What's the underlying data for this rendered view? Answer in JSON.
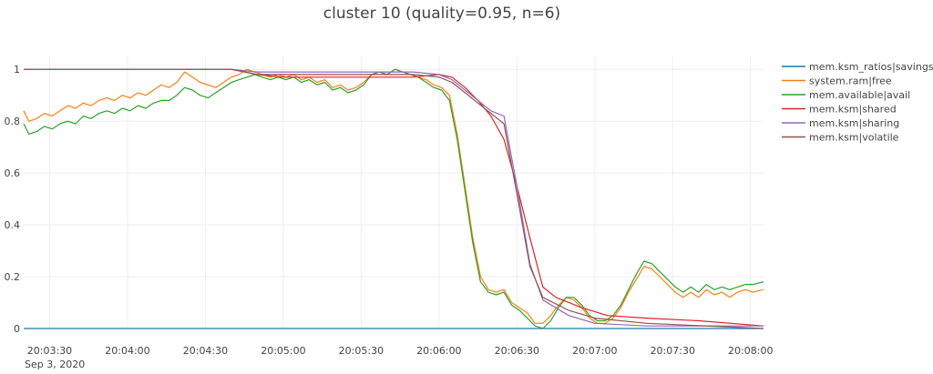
{
  "chart_data": {
    "type": "line",
    "title": "cluster 10 (quality=0.95, n=6)",
    "x_axis": {
      "ticks": [
        "20:03:30",
        "20:04:00",
        "20:04:30",
        "20:05:00",
        "20:05:30",
        "20:06:00",
        "20:06:30",
        "20:07:00",
        "20:07:30",
        "20:08:00"
      ],
      "date_label": "Sep 3, 2020",
      "range_seconds_from_label": [
        0,
        0
      ]
    },
    "y_axis": {
      "ticks": [
        "0",
        "0.2",
        "0.4",
        "0.6",
        "0.8",
        "1"
      ],
      "ylim": [
        0,
        1.05
      ]
    },
    "x_range": [
      "20:03:20",
      "20:08:05"
    ],
    "grid": true,
    "legend_position": "right",
    "series": [
      {
        "name": "mem.ksm_ratios|savings",
        "color": "#1f77b4",
        "points": [
          [
            "20:03:20",
            0.0
          ],
          [
            "20:08:05",
            0.0
          ]
        ]
      },
      {
        "name": "system.ram|free",
        "color": "#ff7f0e",
        "points": [
          [
            "20:03:20",
            0.84
          ],
          [
            "20:03:22",
            0.8
          ],
          [
            "20:03:25",
            0.81
          ],
          [
            "20:03:28",
            0.83
          ],
          [
            "20:03:31",
            0.82
          ],
          [
            "20:03:34",
            0.84
          ],
          [
            "20:03:37",
            0.86
          ],
          [
            "20:03:40",
            0.85
          ],
          [
            "20:03:43",
            0.87
          ],
          [
            "20:03:46",
            0.86
          ],
          [
            "20:03:49",
            0.88
          ],
          [
            "20:03:52",
            0.89
          ],
          [
            "20:03:55",
            0.88
          ],
          [
            "20:03:58",
            0.9
          ],
          [
            "20:04:01",
            0.89
          ],
          [
            "20:04:04",
            0.91
          ],
          [
            "20:04:07",
            0.9
          ],
          [
            "20:04:10",
            0.92
          ],
          [
            "20:04:13",
            0.94
          ],
          [
            "20:04:16",
            0.93
          ],
          [
            "20:04:19",
            0.95
          ],
          [
            "20:04:22",
            0.99
          ],
          [
            "20:04:25",
            0.97
          ],
          [
            "20:04:28",
            0.95
          ],
          [
            "20:04:31",
            0.94
          ],
          [
            "20:04:34",
            0.93
          ],
          [
            "20:04:37",
            0.95
          ],
          [
            "20:04:40",
            0.97
          ],
          [
            "20:04:43",
            0.98
          ],
          [
            "20:04:46",
            1.0
          ],
          [
            "20:04:49",
            0.99
          ],
          [
            "20:04:52",
            0.98
          ],
          [
            "20:04:55",
            0.97
          ],
          [
            "20:04:58",
            0.98
          ],
          [
            "20:05:01",
            0.97
          ],
          [
            "20:05:04",
            0.98
          ],
          [
            "20:05:07",
            0.96
          ],
          [
            "20:05:10",
            0.97
          ],
          [
            "20:05:13",
            0.95
          ],
          [
            "20:05:16",
            0.96
          ],
          [
            "20:05:19",
            0.93
          ],
          [
            "20:05:22",
            0.94
          ],
          [
            "20:05:25",
            0.92
          ],
          [
            "20:05:28",
            0.93
          ],
          [
            "20:05:31",
            0.95
          ],
          [
            "20:05:34",
            0.98
          ],
          [
            "20:05:37",
            0.99
          ],
          [
            "20:05:40",
            0.98
          ],
          [
            "20:05:43",
            1.0
          ],
          [
            "20:05:46",
            0.99
          ],
          [
            "20:05:49",
            0.98
          ],
          [
            "20:05:52",
            0.97
          ],
          [
            "20:05:55",
            0.96
          ],
          [
            "20:05:58",
            0.94
          ],
          [
            "20:06:01",
            0.93
          ],
          [
            "20:06:04",
            0.9
          ],
          [
            "20:06:07",
            0.75
          ],
          [
            "20:06:10",
            0.55
          ],
          [
            "20:06:13",
            0.35
          ],
          [
            "20:06:16",
            0.2
          ],
          [
            "20:06:19",
            0.15
          ],
          [
            "20:06:22",
            0.14
          ],
          [
            "20:06:25",
            0.15
          ],
          [
            "20:06:28",
            0.1
          ],
          [
            "20:06:31",
            0.08
          ],
          [
            "20:06:34",
            0.06
          ],
          [
            "20:06:37",
            0.02
          ],
          [
            "20:06:40",
            0.02
          ],
          [
            "20:06:43",
            0.05
          ],
          [
            "20:06:46",
            0.09
          ],
          [
            "20:06:49",
            0.12
          ],
          [
            "20:06:52",
            0.11
          ],
          [
            "20:06:55",
            0.08
          ],
          [
            "20:06:58",
            0.04
          ],
          [
            "20:07:01",
            0.02
          ],
          [
            "20:07:04",
            0.02
          ],
          [
            "20:07:07",
            0.04
          ],
          [
            "20:07:10",
            0.08
          ],
          [
            "20:07:13",
            0.14
          ],
          [
            "20:07:16",
            0.19
          ],
          [
            "20:07:19",
            0.24
          ],
          [
            "20:07:22",
            0.23
          ],
          [
            "20:07:25",
            0.2
          ],
          [
            "20:07:28",
            0.17
          ],
          [
            "20:07:31",
            0.14
          ],
          [
            "20:07:34",
            0.12
          ],
          [
            "20:07:37",
            0.14
          ],
          [
            "20:07:40",
            0.12
          ],
          [
            "20:07:43",
            0.15
          ],
          [
            "20:07:46",
            0.13
          ],
          [
            "20:07:49",
            0.14
          ],
          [
            "20:07:52",
            0.12
          ],
          [
            "20:07:55",
            0.14
          ],
          [
            "20:07:58",
            0.15
          ],
          [
            "20:08:01",
            0.14
          ],
          [
            "20:08:05",
            0.15
          ]
        ]
      },
      {
        "name": "mem.available|avail",
        "color": "#2ca02c",
        "points": [
          [
            "20:03:20",
            0.79
          ],
          [
            "20:03:22",
            0.75
          ],
          [
            "20:03:25",
            0.76
          ],
          [
            "20:03:28",
            0.78
          ],
          [
            "20:03:31",
            0.77
          ],
          [
            "20:03:34",
            0.79
          ],
          [
            "20:03:37",
            0.8
          ],
          [
            "20:03:40",
            0.79
          ],
          [
            "20:03:43",
            0.82
          ],
          [
            "20:03:46",
            0.81
          ],
          [
            "20:03:49",
            0.83
          ],
          [
            "20:03:52",
            0.84
          ],
          [
            "20:03:55",
            0.83
          ],
          [
            "20:03:58",
            0.85
          ],
          [
            "20:04:01",
            0.84
          ],
          [
            "20:04:04",
            0.86
          ],
          [
            "20:04:07",
            0.85
          ],
          [
            "20:04:10",
            0.87
          ],
          [
            "20:04:13",
            0.88
          ],
          [
            "20:04:16",
            0.88
          ],
          [
            "20:04:19",
            0.9
          ],
          [
            "20:04:22",
            0.93
          ],
          [
            "20:04:25",
            0.92
          ],
          [
            "20:04:28",
            0.9
          ],
          [
            "20:04:31",
            0.89
          ],
          [
            "20:04:34",
            0.91
          ],
          [
            "20:04:37",
            0.93
          ],
          [
            "20:04:40",
            0.95
          ],
          [
            "20:04:43",
            0.96
          ],
          [
            "20:04:46",
            0.97
          ],
          [
            "20:04:49",
            0.98
          ],
          [
            "20:04:52",
            0.97
          ],
          [
            "20:04:55",
            0.96
          ],
          [
            "20:04:58",
            0.97
          ],
          [
            "20:05:01",
            0.96
          ],
          [
            "20:05:04",
            0.97
          ],
          [
            "20:05:07",
            0.95
          ],
          [
            "20:05:10",
            0.96
          ],
          [
            "20:05:13",
            0.94
          ],
          [
            "20:05:16",
            0.95
          ],
          [
            "20:05:19",
            0.92
          ],
          [
            "20:05:22",
            0.93
          ],
          [
            "20:05:25",
            0.91
          ],
          [
            "20:05:28",
            0.92
          ],
          [
            "20:05:31",
            0.94
          ],
          [
            "20:05:34",
            0.98
          ],
          [
            "20:05:37",
            0.99
          ],
          [
            "20:05:40",
            0.98
          ],
          [
            "20:05:43",
            1.0
          ],
          [
            "20:05:46",
            0.99
          ],
          [
            "20:05:49",
            0.98
          ],
          [
            "20:05:52",
            0.97
          ],
          [
            "20:05:55",
            0.95
          ],
          [
            "20:05:58",
            0.93
          ],
          [
            "20:06:01",
            0.92
          ],
          [
            "20:06:04",
            0.88
          ],
          [
            "20:06:07",
            0.73
          ],
          [
            "20:06:10",
            0.53
          ],
          [
            "20:06:13",
            0.33
          ],
          [
            "20:06:16",
            0.18
          ],
          [
            "20:06:19",
            0.14
          ],
          [
            "20:06:22",
            0.13
          ],
          [
            "20:06:25",
            0.14
          ],
          [
            "20:06:28",
            0.09
          ],
          [
            "20:06:31",
            0.07
          ],
          [
            "20:06:34",
            0.04
          ],
          [
            "20:06:37",
            0.01
          ],
          [
            "20:06:40",
            0.0
          ],
          [
            "20:06:43",
            0.03
          ],
          [
            "20:06:46",
            0.08
          ],
          [
            "20:06:49",
            0.12
          ],
          [
            "20:06:52",
            0.12
          ],
          [
            "20:06:55",
            0.09
          ],
          [
            "20:06:58",
            0.05
          ],
          [
            "20:07:01",
            0.03
          ],
          [
            "20:07:04",
            0.03
          ],
          [
            "20:07:07",
            0.05
          ],
          [
            "20:07:10",
            0.09
          ],
          [
            "20:07:13",
            0.15
          ],
          [
            "20:07:16",
            0.21
          ],
          [
            "20:07:19",
            0.26
          ],
          [
            "20:07:22",
            0.25
          ],
          [
            "20:07:25",
            0.22
          ],
          [
            "20:07:28",
            0.19
          ],
          [
            "20:07:31",
            0.16
          ],
          [
            "20:07:34",
            0.14
          ],
          [
            "20:07:37",
            0.16
          ],
          [
            "20:07:40",
            0.14
          ],
          [
            "20:07:43",
            0.17
          ],
          [
            "20:07:46",
            0.15
          ],
          [
            "20:07:49",
            0.16
          ],
          [
            "20:07:52",
            0.15
          ],
          [
            "20:07:55",
            0.16
          ],
          [
            "20:07:58",
            0.17
          ],
          [
            "20:08:01",
            0.17
          ],
          [
            "20:08:05",
            0.18
          ]
        ]
      },
      {
        "name": "mem.ksm|shared",
        "color": "#d62728",
        "points": [
          [
            "20:03:20",
            1.0
          ],
          [
            "20:04:40",
            1.0
          ],
          [
            "20:04:50",
            0.98
          ],
          [
            "20:05:00",
            0.97
          ],
          [
            "20:05:50",
            0.97
          ],
          [
            "20:06:00",
            0.98
          ],
          [
            "20:06:05",
            0.97
          ],
          [
            "20:06:10",
            0.93
          ],
          [
            "20:06:15",
            0.88
          ],
          [
            "20:06:20",
            0.82
          ],
          [
            "20:06:25",
            0.73
          ],
          [
            "20:06:30",
            0.55
          ],
          [
            "20:06:35",
            0.35
          ],
          [
            "20:06:40",
            0.16
          ],
          [
            "20:06:45",
            0.12
          ],
          [
            "20:06:55",
            0.08
          ],
          [
            "20:07:05",
            0.05
          ],
          [
            "20:07:20",
            0.04
          ],
          [
            "20:07:40",
            0.03
          ],
          [
            "20:08:05",
            0.01
          ]
        ]
      },
      {
        "name": "mem.ksm|sharing",
        "color": "#9467bd",
        "points": [
          [
            "20:03:20",
            1.0
          ],
          [
            "20:04:40",
            1.0
          ],
          [
            "20:04:50",
            0.99
          ],
          [
            "20:05:50",
            0.99
          ],
          [
            "20:06:00",
            0.98
          ],
          [
            "20:06:05",
            0.96
          ],
          [
            "20:06:10",
            0.92
          ],
          [
            "20:06:15",
            0.88
          ],
          [
            "20:06:20",
            0.84
          ],
          [
            "20:06:25",
            0.82
          ],
          [
            "20:06:30",
            0.55
          ],
          [
            "20:06:35",
            0.25
          ],
          [
            "20:06:40",
            0.11
          ],
          [
            "20:06:50",
            0.05
          ],
          [
            "20:07:00",
            0.02
          ],
          [
            "20:07:20",
            0.01
          ],
          [
            "20:08:05",
            0.01
          ]
        ]
      },
      {
        "name": "mem.ksm|volatile",
        "color": "#8c564b",
        "points": [
          [
            "20:03:20",
            1.0
          ],
          [
            "20:04:40",
            1.0
          ],
          [
            "20:04:50",
            0.98
          ],
          [
            "20:05:50",
            0.98
          ],
          [
            "20:06:00",
            0.97
          ],
          [
            "20:06:05",
            0.95
          ],
          [
            "20:06:10",
            0.91
          ],
          [
            "20:06:15",
            0.87
          ],
          [
            "20:06:20",
            0.83
          ],
          [
            "20:06:25",
            0.79
          ],
          [
            "20:06:30",
            0.52
          ],
          [
            "20:06:35",
            0.24
          ],
          [
            "20:06:40",
            0.12
          ],
          [
            "20:06:50",
            0.07
          ],
          [
            "20:07:00",
            0.04
          ],
          [
            "20:07:20",
            0.02
          ],
          [
            "20:08:05",
            0.0
          ]
        ]
      }
    ]
  }
}
